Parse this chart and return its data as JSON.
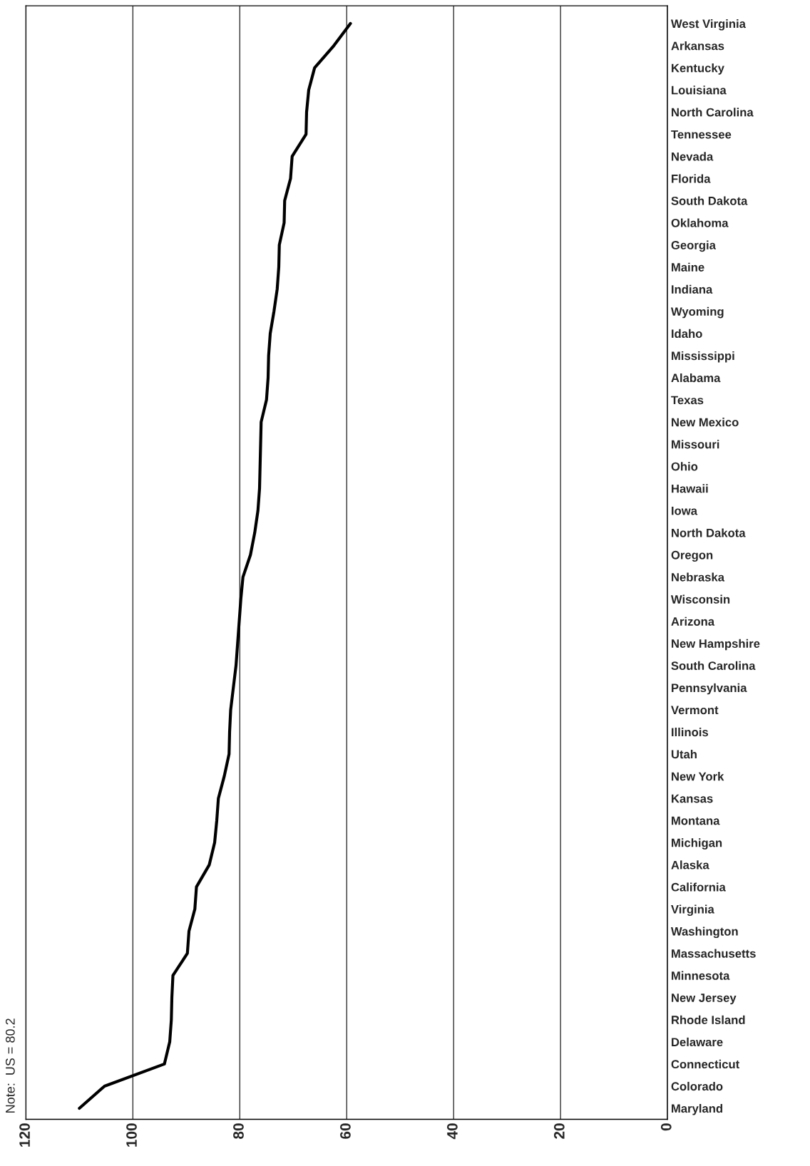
{
  "chart_data": {
    "type": "line",
    "orientation": "horizontal",
    "categories": [
      "West Virginia",
      "Arkansas",
      "Kentucky",
      "Louisiana",
      "North Carolina",
      "Tennessee",
      "Nevada",
      "Florida",
      "South Dakota",
      "Oklahoma",
      "Georgia",
      "Maine",
      "Indiana",
      "Wyoming",
      "Idaho",
      "Mississippi",
      "Alabama",
      "Texas",
      "New Mexico",
      "Missouri",
      "Ohio",
      "Hawaii",
      "Iowa",
      "North Dakota",
      "Oregon",
      "Nebraska",
      "Wisconsin",
      "Arizona",
      "New Hampshire",
      "South Carolina",
      "Pennsylvania",
      "Vermont",
      "Illinois",
      "Utah",
      "New York",
      "Kansas",
      "Montana",
      "Michigan",
      "Alaska",
      "California",
      "Virginia",
      "Washington",
      "Massachusetts",
      "Minnesota",
      "New Jersey",
      "Rhode Island",
      "Delaware",
      "Connecticut",
      "Colorado",
      "Maryland"
    ],
    "values": [
      59.3,
      62.4,
      66.0,
      67.1,
      67.5,
      67.6,
      70.2,
      70.5,
      71.6,
      71.7,
      72.6,
      72.7,
      73.0,
      73.6,
      74.3,
      74.6,
      74.7,
      75.0,
      76.0,
      76.1,
      76.2,
      76.3,
      76.6,
      77.2,
      78.0,
      79.4,
      79.8,
      80.1,
      80.4,
      80.7,
      81.2,
      81.7,
      81.9,
      82.0,
      82.9,
      84.0,
      84.3,
      84.7,
      85.7,
      88.1,
      88.4,
      89.5,
      89.8,
      92.5,
      92.7,
      92.8,
      93.1,
      94.1,
      105.3,
      110.0
    ],
    "color": "#000000",
    "xlim": [
      120,
      0
    ],
    "xticks": [
      120,
      100,
      80,
      60,
      40,
      20,
      0
    ],
    "grid": "x",
    "annotations": [
      "Note:  US = 80.2"
    ]
  }
}
